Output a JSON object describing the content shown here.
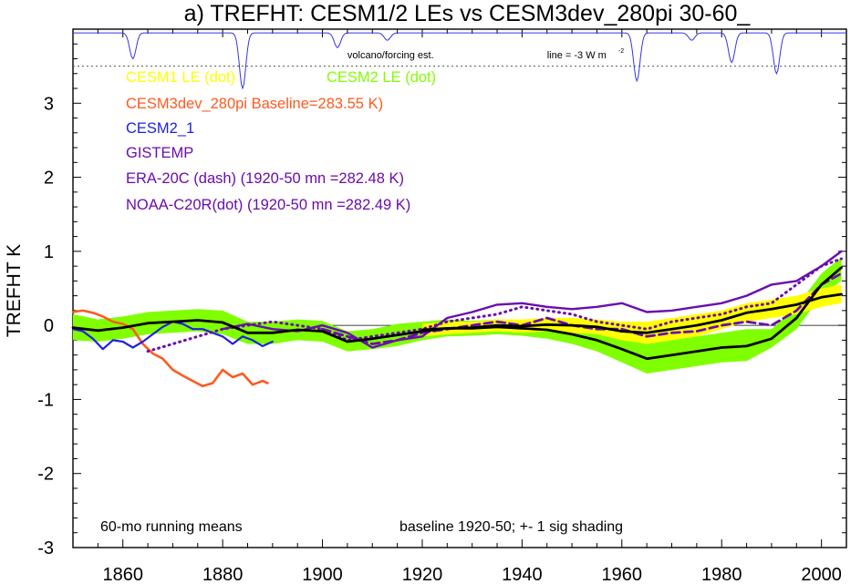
{
  "chart_data": {
    "type": "line",
    "title": "a) TREFHT: CESM1/2 LEs vs CESM3dev_280pi 30-60_",
    "ylabel": "TREFHT K",
    "xlabel": "",
    "xlim": [
      1850,
      2005
    ],
    "ylim": [
      -3,
      4
    ],
    "x_ticks": [
      1860,
      1880,
      1900,
      1920,
      1940,
      1960,
      1980,
      2000
    ],
    "y_ticks": [
      -3,
      -2,
      -1,
      0,
      1,
      2,
      3
    ],
    "y_tick_labels": [
      "-3",
      "-2",
      "-1",
      "0",
      "1",
      "2",
      "3"
    ],
    "colors": {
      "cesm1": "#ffff00",
      "cesm2": "#80ff00",
      "cesm3dev": "#ff5a1f",
      "cesm2_1": "#2020e0",
      "obs": "#6a0dad",
      "ensemble_mean": "#000000",
      "volcano": "#3333ee"
    },
    "legend": [
      {
        "key": "cesm1",
        "text": "CESM1 LE (dot)"
      },
      {
        "key": "cesm2",
        "text": "CESM2 LE (dot)"
      },
      {
        "key": "cesm3dev",
        "text": "CESM3dev_280pi Baseline=283.55 K)"
      },
      {
        "key": "cesm2_1",
        "text": "CESM2_1"
      },
      {
        "key": "obs",
        "text": "GISTEMP"
      },
      {
        "key": "obs",
        "text": "ERA-20C (dash) (1920-50 mn =282.48 K)"
      },
      {
        "key": "obs",
        "text": "NOAA-C20R(dot) (1920-50 mn =282.49 K)"
      }
    ],
    "volcano_label": "volcano/forcing est.",
    "volcano_line_label": "line = -3 W m",
    "volcano_line_exp": "-2",
    "volcano_reference_y": 3.5,
    "volcano_dips": [
      {
        "x": 1862,
        "depth": 0.35
      },
      {
        "x": 1884,
        "depth": 0.75
      },
      {
        "x": 1903,
        "depth": 0.2
      },
      {
        "x": 1913,
        "depth": 0.1
      },
      {
        "x": 1963,
        "depth": 0.65
      },
      {
        "x": 1974,
        "depth": 0.1
      },
      {
        "x": 1982,
        "depth": 0.4
      },
      {
        "x": 1991,
        "depth": 0.55
      }
    ],
    "annotations": [
      {
        "text": "60-mo running means"
      },
      {
        "text": "baseline 1920-50; +- 1 sig shading"
      }
    ],
    "series": [
      {
        "name": "CESM2 LE",
        "role": "band",
        "x": [
          1850,
          1855,
          1860,
          1865,
          1870,
          1875,
          1880,
          1885,
          1890,
          1895,
          1900,
          1905,
          1910,
          1915,
          1920,
          1925,
          1930,
          1935,
          1940,
          1945,
          1950,
          1955,
          1960,
          1965,
          1970,
          1975,
          1980,
          1985,
          1990,
          1995,
          2000,
          2004
        ],
        "upper": [
          0.15,
          0.08,
          0.12,
          0.18,
          0.2,
          0.22,
          0.2,
          0.05,
          0.05,
          0.08,
          0.06,
          -0.08,
          -0.05,
          0.02,
          0.05,
          0.08,
          0.06,
          0.08,
          0.06,
          0.05,
          0.02,
          -0.05,
          -0.15,
          -0.25,
          -0.2,
          -0.15,
          -0.1,
          -0.05,
          -0.05,
          0.25,
          0.7,
          0.92
        ],
        "lower": [
          -0.2,
          -0.22,
          -0.18,
          -0.12,
          -0.1,
          -0.08,
          -0.12,
          -0.25,
          -0.25,
          -0.2,
          -0.22,
          -0.35,
          -0.32,
          -0.28,
          -0.2,
          -0.15,
          -0.14,
          -0.12,
          -0.14,
          -0.18,
          -0.25,
          -0.35,
          -0.5,
          -0.65,
          -0.6,
          -0.55,
          -0.5,
          -0.48,
          -0.3,
          -0.05,
          0.4,
          0.6
        ]
      },
      {
        "name": "CESM1 LE",
        "role": "band",
        "x": [
          1920,
          1925,
          1930,
          1935,
          1940,
          1945,
          1950,
          1955,
          1960,
          1965,
          1970,
          1975,
          1980,
          1985,
          1990,
          1995,
          2000,
          2004
        ],
        "upper": [
          0.02,
          0.05,
          0.05,
          0.08,
          0.08,
          0.1,
          0.1,
          0.08,
          0.05,
          0.05,
          0.1,
          0.15,
          0.2,
          0.3,
          0.35,
          0.4,
          0.5,
          0.55
        ],
        "lower": [
          -0.15,
          -0.12,
          -0.1,
          -0.08,
          -0.1,
          -0.08,
          -0.1,
          -0.12,
          -0.2,
          -0.25,
          -0.2,
          -0.15,
          -0.05,
          0.05,
          0.1,
          0.15,
          0.25,
          0.3
        ]
      },
      {
        "name": "CESM1 ensemble mean",
        "role": "mean",
        "x": [
          1920,
          1925,
          1930,
          1935,
          1940,
          1945,
          1950,
          1955,
          1960,
          1965,
          1970,
          1975,
          1980,
          1985,
          1990,
          1995,
          2000,
          2004
        ],
        "y": [
          -0.06,
          -0.04,
          -0.03,
          0.0,
          -0.01,
          0.01,
          0.0,
          -0.02,
          -0.08,
          -0.1,
          -0.05,
          0.0,
          0.07,
          0.17,
          0.22,
          0.28,
          0.38,
          0.42
        ]
      },
      {
        "name": "CESM2 ensemble mean",
        "role": "mean",
        "x": [
          1850,
          1855,
          1860,
          1865,
          1870,
          1875,
          1880,
          1885,
          1890,
          1895,
          1900,
          1905,
          1910,
          1915,
          1920,
          1925,
          1930,
          1935,
          1940,
          1945,
          1950,
          1955,
          1960,
          1965,
          1970,
          1975,
          1980,
          1985,
          1990,
          1995,
          2000,
          2004
        ],
        "y": [
          -0.03,
          -0.07,
          -0.03,
          0.03,
          0.05,
          0.07,
          0.04,
          -0.1,
          -0.1,
          -0.06,
          -0.08,
          -0.22,
          -0.18,
          -0.13,
          -0.08,
          -0.04,
          -0.04,
          -0.02,
          -0.04,
          -0.06,
          -0.12,
          -0.2,
          -0.32,
          -0.45,
          -0.4,
          -0.35,
          -0.3,
          -0.28,
          -0.18,
          0.1,
          0.55,
          0.78
        ]
      },
      {
        "name": "CESM3dev_280pi",
        "role": "line",
        "x": [
          1850,
          1852,
          1854,
          1856,
          1858,
          1860,
          1862,
          1864,
          1866,
          1868,
          1870,
          1872,
          1874,
          1876,
          1878,
          1880,
          1882,
          1884,
          1886,
          1888,
          1889
        ],
        "y": [
          0.18,
          0.2,
          0.17,
          0.12,
          0.05,
          0.02,
          -0.05,
          -0.25,
          -0.38,
          -0.45,
          -0.6,
          -0.68,
          -0.75,
          -0.82,
          -0.78,
          -0.6,
          -0.7,
          -0.65,
          -0.8,
          -0.75,
          -0.78
        ]
      },
      {
        "name": "CESM2_1",
        "role": "line",
        "x": [
          1850,
          1852,
          1854,
          1856,
          1858,
          1860,
          1862,
          1864,
          1866,
          1868,
          1870,
          1872,
          1874,
          1876,
          1878,
          1880,
          1882,
          1884,
          1886,
          1888,
          1890
        ],
        "y": [
          -0.05,
          -0.08,
          -0.18,
          -0.32,
          -0.2,
          -0.22,
          -0.3,
          -0.22,
          -0.12,
          -0.02,
          0.05,
          0.02,
          -0.05,
          -0.05,
          -0.1,
          -0.15,
          -0.25,
          -0.15,
          -0.2,
          -0.28,
          -0.22
        ]
      },
      {
        "name": "GISTEMP",
        "role": "line",
        "x": [
          1880,
          1885,
          1890,
          1895,
          1900,
          1905,
          1910,
          1915,
          1920,
          1925,
          1930,
          1935,
          1940,
          1945,
          1950,
          1955,
          1960,
          1965,
          1970,
          1975,
          1980,
          1985,
          1990,
          1995,
          2000,
          2004
        ],
        "y": [
          -0.05,
          0.02,
          -0.05,
          -0.08,
          0.0,
          -0.1,
          -0.3,
          -0.2,
          -0.15,
          0.1,
          0.18,
          0.28,
          0.3,
          0.25,
          0.22,
          0.25,
          0.3,
          0.18,
          0.2,
          0.25,
          0.3,
          0.4,
          0.55,
          0.6,
          0.8,
          1.0
        ]
      },
      {
        "name": "ERA-20C",
        "role": "line",
        "x": [
          1900,
          1905,
          1910,
          1915,
          1920,
          1925,
          1930,
          1935,
          1940,
          1945,
          1950,
          1955,
          1960,
          1965,
          1970,
          1975,
          1980,
          1985,
          1990,
          1995,
          2000,
          2004
        ],
        "y": [
          -0.05,
          -0.15,
          -0.25,
          -0.2,
          -0.1,
          -0.05,
          0.0,
          0.05,
          0.0,
          0.1,
          0.0,
          -0.05,
          -0.05,
          -0.15,
          -0.1,
          -0.08,
          0.0,
          0.05,
          0.0,
          0.2,
          0.55,
          0.7
        ]
      },
      {
        "name": "NOAA-C20R",
        "role": "line",
        "x": [
          1865,
          1870,
          1875,
          1880,
          1885,
          1890,
          1895,
          1900,
          1905,
          1910,
          1915,
          1920,
          1925,
          1930,
          1935,
          1940,
          1945,
          1950,
          1955,
          1960,
          1965,
          1970,
          1975,
          1980,
          1985,
          1990,
          1995,
          2000,
          2004
        ],
        "y": [
          -0.35,
          -0.25,
          -0.15,
          -0.05,
          0.0,
          0.05,
          0.0,
          -0.05,
          -0.2,
          -0.15,
          -0.1,
          -0.05,
          0.05,
          0.1,
          0.15,
          0.25,
          0.2,
          0.15,
          0.05,
          0.0,
          -0.05,
          0.05,
          0.1,
          0.15,
          0.25,
          0.3,
          0.55,
          0.8,
          0.9
        ]
      }
    ]
  }
}
